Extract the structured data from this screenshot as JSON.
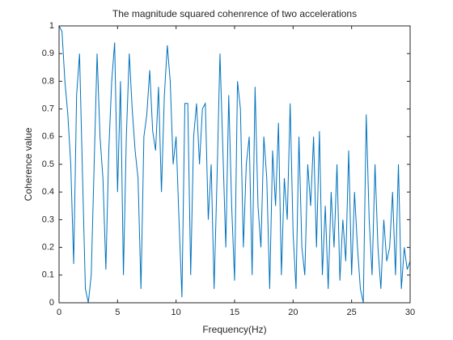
{
  "chart_data": {
    "type": "line",
    "title": "The magnitude squared cohenrence of two accelerations",
    "xlabel": "Frequency(Hz)",
    "ylabel": "Coherence value",
    "color": "#0072bd",
    "x": [
      0,
      0.25,
      0.5,
      0.75,
      1,
      1.25,
      1.5,
      1.75,
      2,
      2.25,
      2.5,
      2.75,
      3,
      3.25,
      3.5,
      3.75,
      4,
      4.25,
      4.5,
      4.75,
      5,
      5.25,
      5.5,
      5.75,
      6,
      6.25,
      6.5,
      6.75,
      7,
      7.25,
      7.5,
      7.75,
      8,
      8.25,
      8.5,
      8.75,
      9,
      9.25,
      9.5,
      9.75,
      10,
      10.25,
      10.5,
      10.75,
      11,
      11.25,
      11.5,
      11.75,
      12,
      12.25,
      12.5,
      12.75,
      13,
      13.25,
      13.5,
      13.75,
      14,
      14.25,
      14.5,
      14.75,
      15,
      15.25,
      15.5,
      15.75,
      16,
      16.25,
      16.5,
      16.75,
      17,
      17.25,
      17.5,
      17.75,
      18,
      18.25,
      18.5,
      18.75,
      19,
      19.25,
      19.5,
      19.75,
      20,
      20.25,
      20.5,
      20.75,
      21,
      21.25,
      21.5,
      21.75,
      22,
      22.25,
      22.5,
      22.75,
      23,
      23.25,
      23.5,
      23.75,
      24,
      24.25,
      24.5,
      24.75,
      25,
      25.25,
      25.5,
      25.75,
      26,
      26.25,
      26.5,
      26.75,
      27,
      27.25,
      27.5,
      27.75,
      28,
      28.25,
      28.5,
      28.75,
      29,
      29.25,
      29.5,
      29.75,
      30
    ],
    "values": [
      1.0,
      0.98,
      0.8,
      0.68,
      0.5,
      0.14,
      0.75,
      0.9,
      0.47,
      0.05,
      0.0,
      0.1,
      0.5,
      0.9,
      0.6,
      0.45,
      0.12,
      0.55,
      0.8,
      0.94,
      0.4,
      0.8,
      0.1,
      0.6,
      0.9,
      0.7,
      0.55,
      0.45,
      0.05,
      0.6,
      0.68,
      0.84,
      0.62,
      0.55,
      0.78,
      0.4,
      0.75,
      0.93,
      0.8,
      0.5,
      0.6,
      0.3,
      0.02,
      0.72,
      0.72,
      0.1,
      0.6,
      0.72,
      0.5,
      0.7,
      0.72,
      0.3,
      0.5,
      0.05,
      0.45,
      0.9,
      0.55,
      0.2,
      0.75,
      0.35,
      0.08,
      0.8,
      0.7,
      0.2,
      0.5,
      0.6,
      0.1,
      0.78,
      0.35,
      0.2,
      0.6,
      0.45,
      0.05,
      0.55,
      0.35,
      0.65,
      0.1,
      0.45,
      0.3,
      0.72,
      0.25,
      0.05,
      0.6,
      0.2,
      0.1,
      0.5,
      0.35,
      0.6,
      0.2,
      0.62,
      0.1,
      0.35,
      0.05,
      0.4,
      0.2,
      0.5,
      0.08,
      0.3,
      0.15,
      0.55,
      0.1,
      0.4,
      0.2,
      0.05,
      0.0,
      0.68,
      0.3,
      0.1,
      0.5,
      0.2,
      0.05,
      0.3,
      0.15,
      0.2,
      0.4,
      0.1,
      0.5,
      0.05,
      0.2,
      0.12,
      0.15
    ],
    "xlim": [
      0,
      30
    ],
    "xticks": [
      0,
      5,
      10,
      15,
      20,
      25,
      30
    ],
    "ylim": [
      0,
      1
    ],
    "yticks": [
      0,
      0.1,
      0.2,
      0.3,
      0.4,
      0.5,
      0.6,
      0.7,
      0.8,
      0.9,
      1
    ],
    "grid": false
  }
}
